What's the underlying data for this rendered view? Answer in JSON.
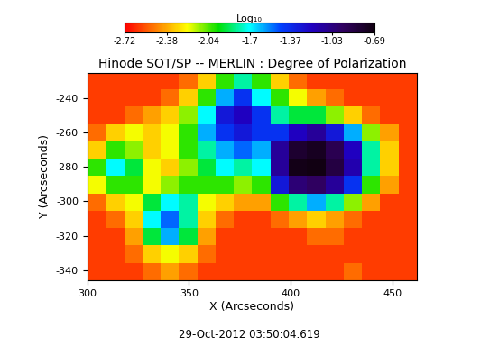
{
  "chart_data": {
    "type": "heatmap",
    "title": "Hinode SOT/SP -- MERLIN : Degree of Polarization",
    "x_label": "X (Arcseconds)",
    "y_label": "Y (Arcseconds)",
    "annotation": "29-Oct-2012 03:50:04.619",
    "xlim": [
      300,
      462
    ],
    "ylim": [
      -346,
      -225
    ],
    "xticks": [
      300,
      350,
      400,
      450
    ],
    "yticks": [
      -340,
      -320,
      -300,
      -280,
      -260,
      -240
    ],
    "cells": [
      [
        -2.6,
        -2.6,
        -2.6,
        -2.6,
        -2.6,
        -2.5,
        -2.3,
        -2.0,
        -1.8,
        -2.0,
        -2.3,
        -2.5,
        -2.6,
        -2.6,
        -2.6,
        -2.6,
        -2.6,
        -2.6
      ],
      [
        -2.6,
        -2.6,
        -2.6,
        -2.6,
        -2.5,
        -2.3,
        -2.0,
        -1.6,
        -1.4,
        -1.7,
        -2.0,
        -2.2,
        -2.4,
        -2.5,
        -2.6,
        -2.6,
        -2.6,
        -2.6
      ],
      [
        -2.6,
        -2.6,
        -2.5,
        -2.4,
        -2.3,
        -2.1,
        -1.7,
        -1.3,
        -1.2,
        -1.4,
        -1.8,
        -1.9,
        -1.9,
        -2.1,
        -2.3,
        -2.5,
        -2.6,
        -2.6
      ],
      [
        -2.5,
        -2.3,
        -2.2,
        -2.3,
        -2.2,
        -2.0,
        -1.6,
        -1.4,
        -1.3,
        -1.4,
        -1.4,
        -1.2,
        -1.1,
        -1.3,
        -1.6,
        -2.1,
        -2.4,
        -2.6
      ],
      [
        -2.3,
        -2.0,
        -2.1,
        -2.3,
        -2.2,
        -2.0,
        -1.8,
        -1.6,
        -1.5,
        -1.6,
        -1.1,
        -0.8,
        -0.75,
        -0.9,
        -1.2,
        -1.8,
        -2.3,
        -2.6
      ],
      [
        -2.0,
        -1.7,
        -1.9,
        -2.2,
        -2.3,
        -2.1,
        -1.9,
        -1.7,
        -1.8,
        -1.7,
        -1.1,
        -0.72,
        -0.7,
        -0.85,
        -1.15,
        -1.8,
        -2.3,
        -2.6
      ],
      [
        -2.2,
        -2.0,
        -2.0,
        -2.2,
        -2.1,
        -2.0,
        -2.0,
        -2.0,
        -2.1,
        -2.0,
        -1.3,
        -1.0,
        -0.95,
        -1.1,
        -1.4,
        -2.0,
        -2.4,
        -2.6
      ],
      [
        -2.5,
        -2.3,
        -2.2,
        -1.9,
        -1.7,
        -1.8,
        -2.2,
        -2.3,
        -2.4,
        -2.4,
        -2.0,
        -1.8,
        -1.6,
        -1.8,
        -2.1,
        -2.4,
        -2.6,
        -2.6
      ],
      [
        -2.6,
        -2.5,
        -2.3,
        -1.7,
        -1.5,
        -1.8,
        -2.3,
        -2.5,
        -2.6,
        -2.6,
        -2.5,
        -2.4,
        -2.3,
        -2.4,
        -2.5,
        -2.6,
        -2.6,
        -2.6
      ],
      [
        -2.6,
        -2.6,
        -2.4,
        -1.9,
        -1.6,
        -1.9,
        -2.4,
        -2.6,
        -2.6,
        -2.6,
        -2.6,
        -2.6,
        -2.5,
        -2.5,
        -2.6,
        -2.6,
        -2.6,
        -2.6
      ],
      [
        -2.6,
        -2.6,
        -2.5,
        -2.3,
        -2.2,
        -2.3,
        -2.5,
        -2.6,
        -2.6,
        -2.6,
        -2.6,
        -2.6,
        -2.6,
        -2.6,
        -2.6,
        -2.6,
        -2.6,
        -2.6
      ],
      [
        -2.6,
        -2.6,
        -2.6,
        -2.5,
        -2.4,
        -2.5,
        -2.6,
        -2.6,
        -2.6,
        -2.6,
        -2.6,
        -2.6,
        -2.6,
        -2.6,
        -2.5,
        -2.6,
        -2.6,
        -2.6
      ]
    ],
    "colorbar": {
      "label": "Log₁₀",
      "range": [
        -2.72,
        -0.69
      ],
      "ticks": [
        -2.72,
        -2.38,
        -2.04,
        -1.7,
        -1.37,
        -1.03,
        -0.69
      ]
    }
  }
}
